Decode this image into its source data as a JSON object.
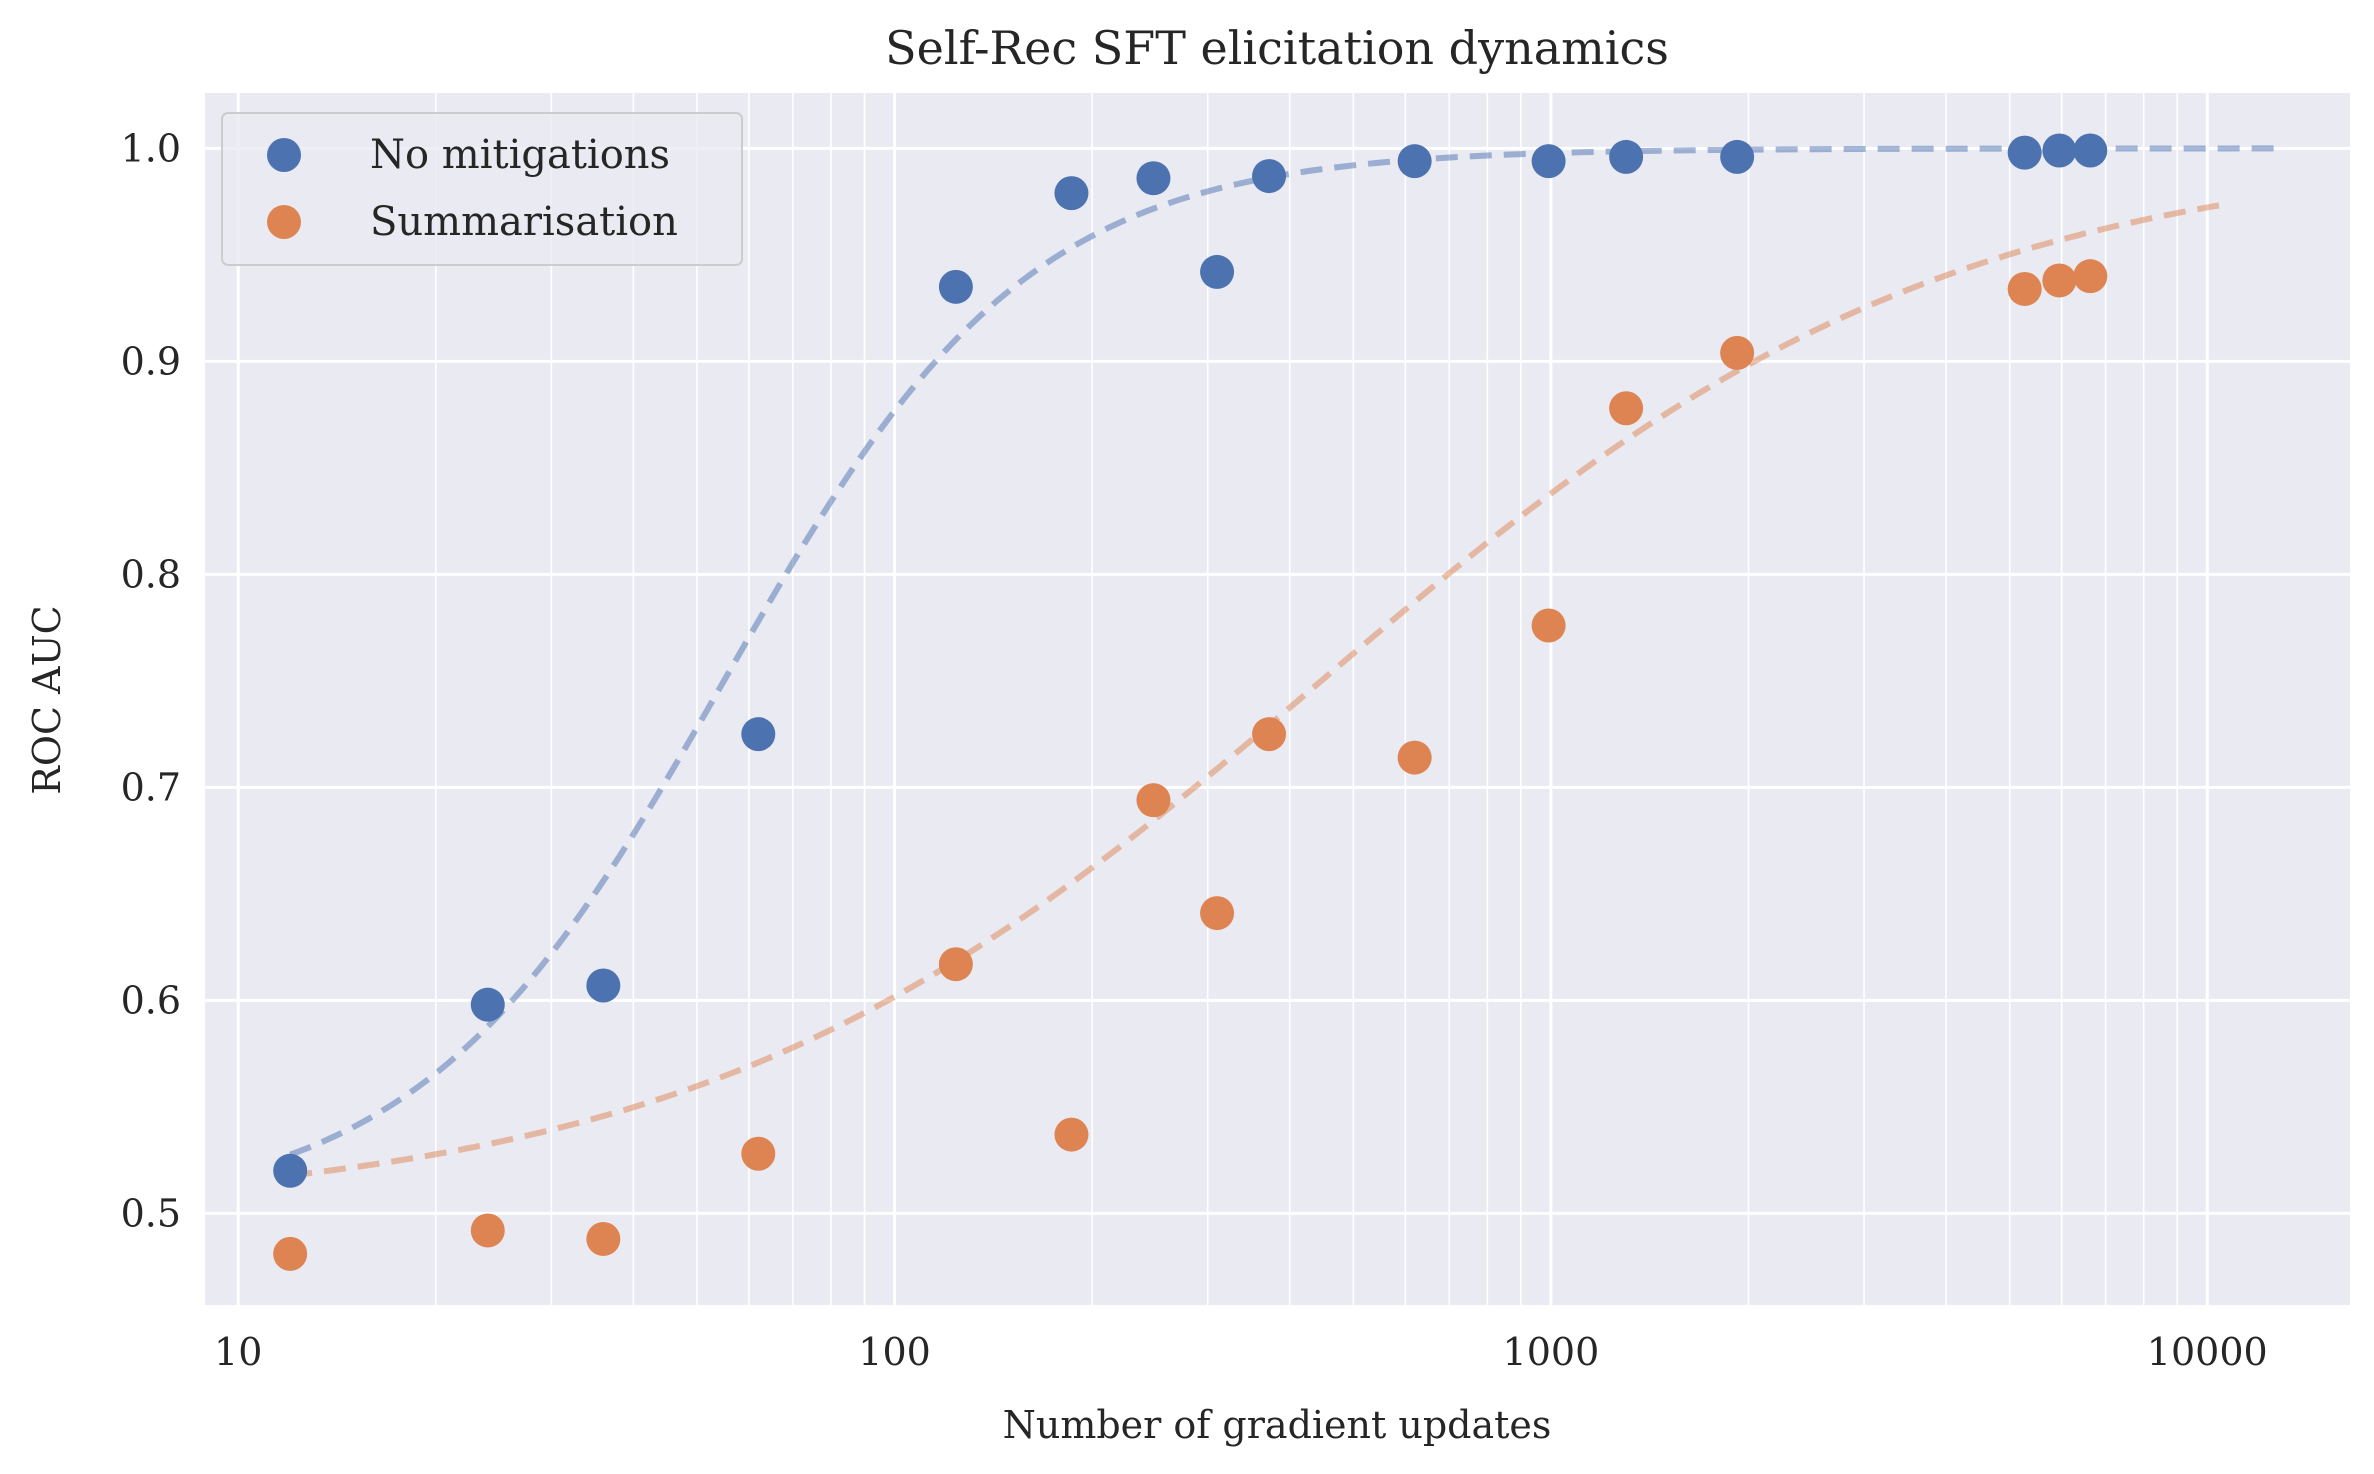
{
  "chart_data": {
    "type": "scatter",
    "title": "Self-Rec SFT elicitation dynamics",
    "xlabel": "Number of gradient updates",
    "ylabel": "ROC AUC",
    "xscale": "log",
    "xlim": [
      8.9,
      16500
    ],
    "ylim": [
      0.457,
      1.026
    ],
    "xticks": [
      {
        "value": 10,
        "label": "10"
      },
      {
        "value": 100,
        "label": "100"
      },
      {
        "value": 1000,
        "label": "1000"
      },
      {
        "value": 10000,
        "label": "10000"
      }
    ],
    "yticks": [
      {
        "value": 0.5,
        "label": "0.5"
      },
      {
        "value": 0.6,
        "label": "0.6"
      },
      {
        "value": 0.7,
        "label": "0.7"
      },
      {
        "value": 0.8,
        "label": "0.8"
      },
      {
        "value": 0.9,
        "label": "0.9"
      },
      {
        "value": 1.0,
        "label": "1.0"
      }
    ],
    "grid": true,
    "legend_position": "upper-left",
    "background": "#eaeaf2",
    "series": [
      {
        "name": "No mitigations",
        "color": "#4c72b0",
        "x": [
          12,
          24,
          36,
          62,
          124,
          186,
          248,
          310,
          372,
          620,
          992,
          1302,
          1922,
          5270,
          5952,
          6634
        ],
        "y": [
          0.52,
          0.598,
          0.607,
          0.725,
          0.935,
          0.979,
          0.986,
          0.942,
          0.987,
          0.994,
          0.994,
          0.996,
          0.996,
          0.998,
          0.999,
          0.999
        ],
        "fit": {
          "model": "logistic-log10",
          "floor": 0.5,
          "midpoint_log10": 1.74,
          "slope": 4.3,
          "x_start": 12,
          "x_end": 13000
        }
      },
      {
        "name": "Summarisation",
        "color": "#dd8452",
        "x": [
          12,
          24,
          36,
          62,
          124,
          186,
          248,
          310,
          372,
          620,
          992,
          1302,
          1922,
          5270,
          5952,
          6634
        ],
        "y": [
          0.481,
          0.492,
          0.488,
          0.528,
          0.617,
          0.537,
          0.694,
          0.641,
          0.725,
          0.714,
          0.776,
          0.878,
          0.904,
          0.934,
          0.938,
          0.94
        ],
        "fit": {
          "model": "logistic-log10",
          "floor": 0.5,
          "midpoint_log10": 2.65,
          "slope": 2.1,
          "x_start": 12,
          "x_end": 10500
        }
      }
    ]
  }
}
